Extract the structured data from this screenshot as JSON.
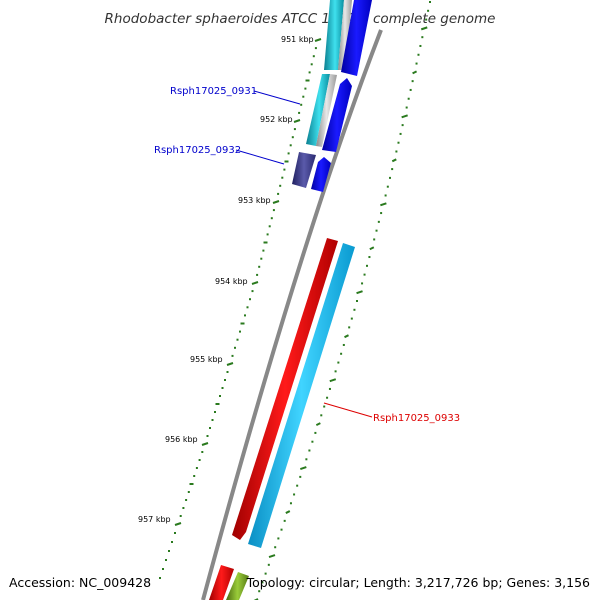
{
  "title": "Rhodobacter sphaeroides ATCC 17025, complete genome",
  "tick_labels": [
    "951 kbp",
    "952 kbp",
    "953 kbp",
    "954 kbp",
    "955 kbp",
    "956 kbp",
    "957 kbp"
  ],
  "genes": {
    "g0931": "Rsph17025_0931",
    "g0932": "Rsph17025_0932",
    "g0933": "Rsph17025_0933"
  },
  "footer": {
    "accession": "Accession: NC_009428",
    "summary": "Topology: circular; Length: 3,217,726 bp; Genes: 3,156"
  },
  "colors": {
    "backbone": "#888888",
    "tick": "#2a7a1e",
    "forward_blue": "#0a0af0",
    "cyan": "#14b0c4",
    "red": "#ee0000",
    "light_blue": "#10b8f0",
    "olive": "#6f9a1e",
    "navy": "#3a3a8a"
  }
}
